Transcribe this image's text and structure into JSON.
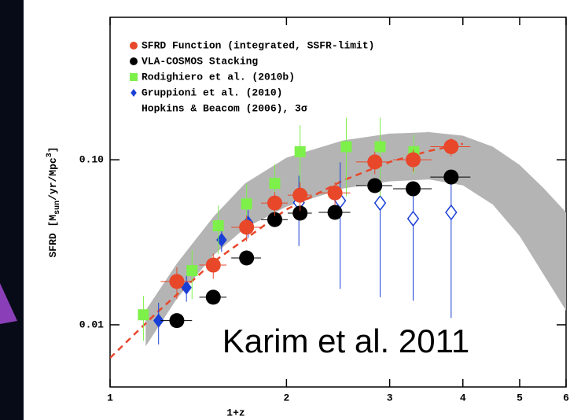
{
  "chart_data": {
    "type": "scatter",
    "xlabel": "1+z",
    "ylabel_parts": [
      "SFRD [M",
      "sun",
      "/yr/Mpc",
      "3",
      "]"
    ],
    "annotation": "Karim et al. 2011",
    "annotation_color": "#e8472a",
    "xlog": true,
    "ylog": true,
    "xlim": [
      1,
      6
    ],
    "xticks": [
      1,
      2,
      3,
      4,
      5,
      6
    ],
    "ylim": [
      0.0042,
      0.73
    ],
    "yticks": [
      {
        "value": 0.1,
        "label": "0.10"
      },
      0.01
    ],
    "legend": "upper left",
    "series": [
      {
        "name": "SFRD Function (integrated, SSFR-limit)",
        "color": "#e8472a",
        "marker": "circle",
        "x": [
          1.3,
          1.5,
          1.71,
          1.91,
          2.11,
          2.42,
          2.83,
          3.29,
          3.82
        ],
        "values": [
          0.0183,
          0.023,
          0.039,
          0.0547,
          0.061,
          0.063,
          0.097,
          0.1,
          0.12
        ],
        "xerr": [
          0.08,
          0.08,
          0.1,
          0.1,
          0.1,
          0.15,
          0.2,
          0.25,
          0.3
        ],
        "yerr": [
          0.004,
          0.004,
          0.007,
          0.009,
          0.012,
          0.01,
          0.015,
          0.015,
          0.015
        ]
      },
      {
        "name": "VLA-COSMOS Stacking",
        "color": "#000000",
        "marker": "circle",
        "x": [
          1.3,
          1.5,
          1.71,
          1.91,
          2.11,
          2.42,
          2.83,
          3.29,
          3.82
        ],
        "values": [
          0.0106,
          0.0147,
          0.0254,
          0.0434,
          0.0475,
          0.048,
          0.0697,
          0.0667,
          0.0786
        ],
        "xerr": [
          0.08,
          0.08,
          0.1,
          0.1,
          0.1,
          0.15,
          0.2,
          0.25,
          0.3
        ]
      },
      {
        "name": "Rodighiero et al. (2010b)",
        "color": "#7df04a",
        "marker": "square",
        "x": [
          1.14,
          1.38,
          1.53,
          1.71,
          1.91,
          2.11,
          2.53,
          2.89,
          3.3
        ],
        "values": [
          0.0115,
          0.0213,
          0.0398,
          0.054,
          0.0719,
          0.112,
          0.12,
          0.12,
          0.112
        ],
        "yerr": [
          0.0035,
          0.007,
          0.013,
          0.017,
          0.022,
          0.05,
          0.06,
          0.06,
          0.03
        ]
      },
      {
        "name": "Gruppioni et al. (2010)",
        "color": "#1a3fd6",
        "marker": "diamond",
        "x": [
          1.21,
          1.35,
          1.55,
          1.72,
          2.1,
          2.47,
          2.89,
          3.29,
          3.82
        ],
        "values": [
          0.0106,
          0.0168,
          0.0327,
          0.0416,
          0.055,
          0.0565,
          0.0547,
          0.044,
          0.048
        ],
        "yerr": [
          0.003,
          0.003,
          0.005,
          0.008,
          0.025,
          0.04,
          0.04,
          0.03,
          0.037
        ],
        "filled": [
          true,
          true,
          true,
          true,
          false,
          false,
          false,
          false,
          false
        ]
      },
      {
        "name": "Hopkins & Beacom (2006), 3σ",
        "color": "#b4b4b4",
        "marker": "band",
        "x": [
          1.15,
          1.3,
          1.5,
          1.7,
          2.0,
          2.5,
          3.0,
          3.5,
          4.0,
          4.5,
          5.0,
          5.5,
          6.0
        ],
        "lower": [
          0.0074,
          0.0144,
          0.0263,
          0.0386,
          0.052,
          0.067,
          0.074,
          0.076,
          0.07,
          0.0535,
          0.0345,
          0.02,
          0.0122
        ],
        "upper": [
          0.0122,
          0.0235,
          0.045,
          0.072,
          0.103,
          0.131,
          0.144,
          0.147,
          0.14,
          0.12,
          0.093,
          0.067,
          0.048
        ]
      }
    ],
    "fit": {
      "color": "#e8472a",
      "x": [
        1.0,
        1.2,
        1.5,
        2.0,
        2.5,
        3.0,
        3.5,
        4.0
      ],
      "values": [
        0.0063,
        0.0118,
        0.024,
        0.05,
        0.075,
        0.097,
        0.113,
        0.125
      ]
    }
  }
}
